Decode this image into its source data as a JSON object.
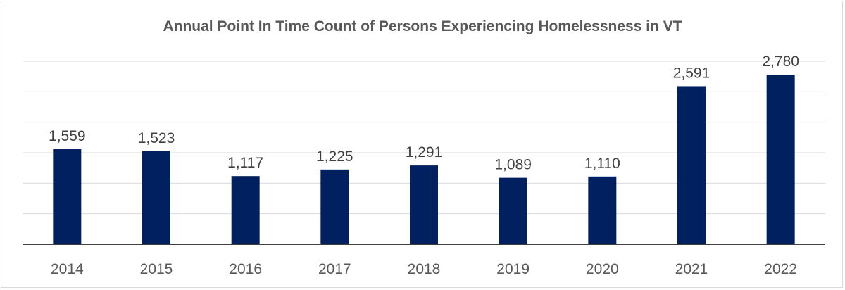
{
  "chart_data": {
    "type": "bar",
    "title": "Annual Point In Time Count of Persons Experiencing Homelessness in VT",
    "categories": [
      "2014",
      "2015",
      "2016",
      "2017",
      "2018",
      "2019",
      "2020",
      "2021",
      "2022"
    ],
    "values": [
      1559,
      1523,
      1117,
      1225,
      1291,
      1089,
      1110,
      2591,
      2780
    ],
    "data_labels": [
      "1,559",
      "1,523",
      "1,117",
      "1,225",
      "1,291",
      "1,089",
      "1,110",
      "2,591",
      "2,780"
    ],
    "xlabel": "",
    "ylabel": "",
    "ylim": [
      0,
      3000
    ],
    "grid": true,
    "legend": "none",
    "bar_color": "#002060"
  }
}
